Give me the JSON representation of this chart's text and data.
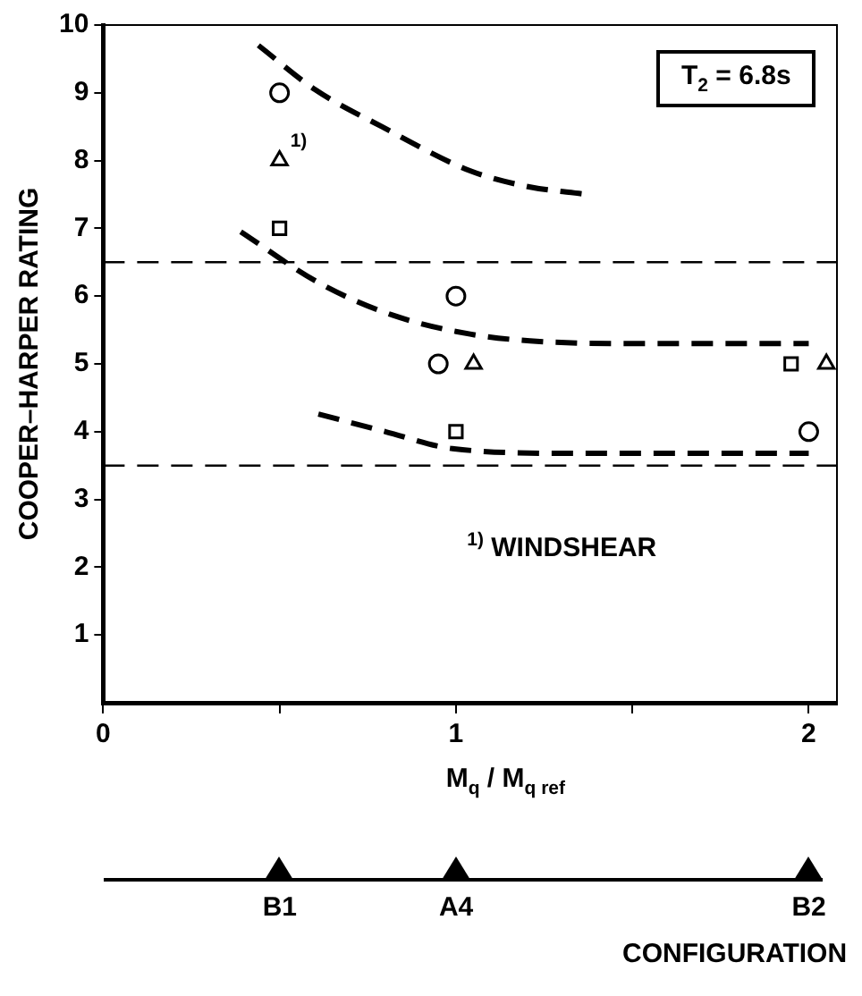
{
  "chart_data": {
    "type": "scatter",
    "ylabel": "COOPER–HARPER RATING",
    "xlabel": "M$_{q}$ / M$_{q ref}$",
    "xlim": [
      0,
      2.08
    ],
    "xticks": [
      0,
      {
        "value": 0.5,
        "label": null
      },
      1,
      {
        "value": 1.5,
        "label": null
      },
      2
    ],
    "ylim": [
      0,
      10
    ],
    "yticks": [
      1,
      2,
      3,
      4,
      5,
      6,
      7,
      8,
      9,
      10
    ],
    "grid": false,
    "legend": false,
    "series": [
      {
        "marker": "circle",
        "color": "#000000",
        "x": [
          0.5,
          1
        ],
        "values": [
          9,
          6
        ]
      },
      {
        "marker": "triangle",
        "color": "#000000",
        "x": [
          0.5,
          1.05,
          2.05
        ],
        "values": [
          8,
          5,
          5
        ]
      },
      {
        "marker": "square",
        "color": "#000000",
        "x": [
          0.5
        ],
        "values": [
          7
        ]
      },
      {
        "marker": "circle",
        "color": "#000000",
        "x": [
          0.95,
          2
        ],
        "values": [
          5,
          4
        ]
      },
      {
        "marker": "square",
        "color": "#000000",
        "x": [
          1,
          1.95
        ],
        "values": [
          4,
          5
        ]
      },
      {
        "type": "line",
        "marker": "none",
        "line_style": "dashed",
        "color": "#000000",
        "x": [
          0.44,
          0.6,
          0.79,
          1.04,
          1.2,
          1.37
        ],
        "values": [
          9.7,
          9.05,
          8.5,
          7.85,
          7.62,
          7.5
        ]
      },
      {
        "type": "line",
        "marker": "none",
        "line_style": "dashed",
        "color": "#000000",
        "x": [
          0.39,
          0.61,
          0.82,
          1.04,
          1.21,
          1.5,
          2
        ],
        "values": [
          6.95,
          6.2,
          5.72,
          5.44,
          5.34,
          5.3,
          5.3
        ]
      },
      {
        "type": "line",
        "marker": "none",
        "line_style": "dashed",
        "color": "#000000",
        "x": [
          0.61,
          0.8,
          0.99,
          1.33,
          2
        ],
        "values": [
          4.26,
          4.0,
          3.75,
          3.68,
          3.68
        ]
      }
    ],
    "ref_lines": [
      {
        "axis": "y",
        "value": 6.5,
        "color": "#000000",
        "line_style": "dashed"
      },
      {
        "axis": "y",
        "value": 3.5,
        "color": "#000000",
        "line_style": "dashed"
      }
    ],
    "annotations": [
      "T$_{2}$ = 6.8s",
      "$^{1)}$ WINDSHEAR",
      "CONFIGURATION",
      {
        "text": "$^{1)}$",
        "x": 0.5,
        "y": 8
      },
      "B1",
      "A4",
      "B2"
    ]
  }
}
